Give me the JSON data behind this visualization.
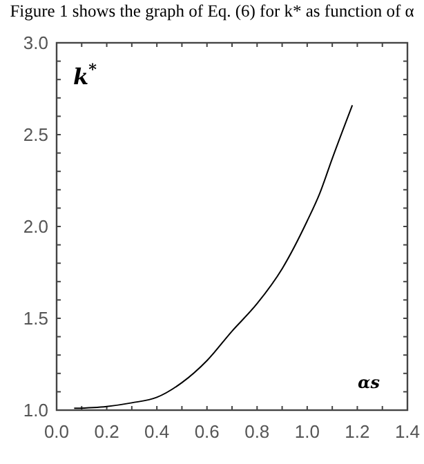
{
  "chart_data": {
    "type": "line",
    "title": "Figure 1 shows the graph of Eq. (6) for k* as function of α",
    "xlabel": "αs",
    "ylabel": "k$^{*}$",
    "x": [
      0.07,
      0.2,
      0.3,
      0.4,
      0.5,
      0.6,
      0.7,
      0.8,
      0.9,
      1.0,
      1.05,
      1.1,
      1.18
    ],
    "series": [
      {
        "color": "#000000",
        "values": [
          1.01,
          1.02,
          1.04,
          1.07,
          1.15,
          1.27,
          1.43,
          1.58,
          1.77,
          2.03,
          2.18,
          2.37,
          2.66
        ]
      }
    ],
    "xlim": [
      0,
      1.4
    ],
    "ylim": [
      1,
      3
    ],
    "xticks": [
      {
        "value": 0,
        "label": "0.0"
      },
      {
        "value": 0.1,
        "label": null
      },
      0.2,
      {
        "value": 0.3,
        "label": null
      },
      0.4,
      {
        "value": 0.5,
        "label": null
      },
      0.6,
      {
        "value": 0.7,
        "label": null
      },
      0.8,
      {
        "value": 0.9,
        "label": null
      },
      {
        "value": 1,
        "label": "1.0"
      },
      {
        "value": 1.1,
        "label": null
      },
      1.2,
      {
        "value": 1.3,
        "label": null
      },
      1.4
    ],
    "yticks": [
      {
        "value": 1,
        "label": "1.0"
      },
      {
        "value": 1.1,
        "label": null
      },
      {
        "value": 1.2,
        "label": null
      },
      {
        "value": 1.3,
        "label": null
      },
      {
        "value": 1.4,
        "label": null
      },
      1.5,
      {
        "value": 1.6,
        "label": null
      },
      {
        "value": 1.7,
        "label": null
      },
      {
        "value": 1.8,
        "label": null
      },
      {
        "value": 1.9,
        "label": null
      },
      {
        "value": 2,
        "label": "2.0"
      },
      {
        "value": 2.1,
        "label": null
      },
      {
        "value": 2.2,
        "label": null
      },
      {
        "value": 2.3,
        "label": null
      },
      {
        "value": 2.4,
        "label": null
      },
      2.5,
      {
        "value": 2.6,
        "label": null
      },
      {
        "value": 2.7,
        "label": null
      },
      {
        "value": 2.8,
        "label": null
      },
      {
        "value": 2.9,
        "label": null
      },
      {
        "value": 3,
        "label": "3.0"
      }
    ],
    "grid": false,
    "marker": "none",
    "line_style": "solid"
  }
}
